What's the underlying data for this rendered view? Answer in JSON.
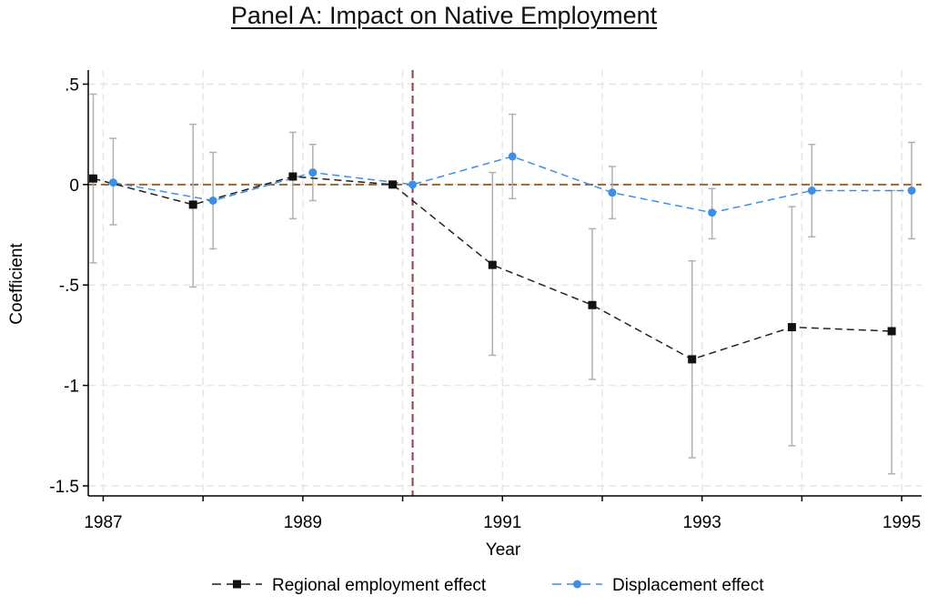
{
  "chart_data": {
    "type": "line",
    "title": "Panel A: Impact on Native Employment",
    "xlabel": "Year",
    "ylabel": "Coefficient",
    "xlim": [
      1986.85,
      1995.2
    ],
    "ylim": [
      -1.55,
      0.57
    ],
    "x_ticks": [
      1987,
      1989,
      1991,
      1993,
      1995
    ],
    "y_ticks": [
      0.5,
      0,
      -0.5,
      -1,
      -1.5
    ],
    "y_tick_labels": [
      ".5",
      "0",
      "-.5",
      "-1",
      "-1.5"
    ],
    "reference_line_y": 0,
    "reference_line_x": 1990.1,
    "grid": true,
    "legend_position": "bottom",
    "series": [
      {
        "name": "Regional employment effect",
        "color": "#222222",
        "marker": "square",
        "x": [
          1986.9,
          1987.9,
          1988.9,
          1989.9,
          1990.9,
          1991.9,
          1992.9,
          1993.9,
          1994.9
        ],
        "values": [
          0.03,
          -0.1,
          0.04,
          0.0,
          -0.4,
          -0.6,
          -0.87,
          -0.71,
          -0.73
        ],
        "ci_low": [
          -0.39,
          -0.51,
          -0.17,
          0.0,
          -0.85,
          -0.97,
          -1.36,
          -1.3,
          -1.44
        ],
        "ci_high": [
          0.45,
          0.3,
          0.26,
          0.0,
          0.06,
          -0.22,
          -0.38,
          -0.11,
          -0.03
        ]
      },
      {
        "name": "Displacement effect",
        "color": "#3b8fe8",
        "marker": "circle",
        "x": [
          1987.1,
          1988.1,
          1989.1,
          1990.1,
          1991.1,
          1992.1,
          1993.1,
          1994.1,
          1995.1
        ],
        "values": [
          0.01,
          -0.08,
          0.06,
          0.0,
          0.14,
          -0.04,
          -0.14,
          -0.03,
          -0.03
        ],
        "ci_low": [
          -0.2,
          -0.32,
          -0.08,
          0.0,
          -0.07,
          -0.17,
          -0.27,
          -0.26,
          -0.27
        ],
        "ci_high": [
          0.23,
          0.16,
          0.2,
          0.0,
          0.35,
          0.09,
          -0.02,
          0.2,
          0.21
        ]
      }
    ],
    "colors": {
      "zero_line": "#a0652a",
      "event_line": "#9c3b42",
      "ci": "#b0b0b0",
      "grid": "#e6e6e6"
    }
  }
}
